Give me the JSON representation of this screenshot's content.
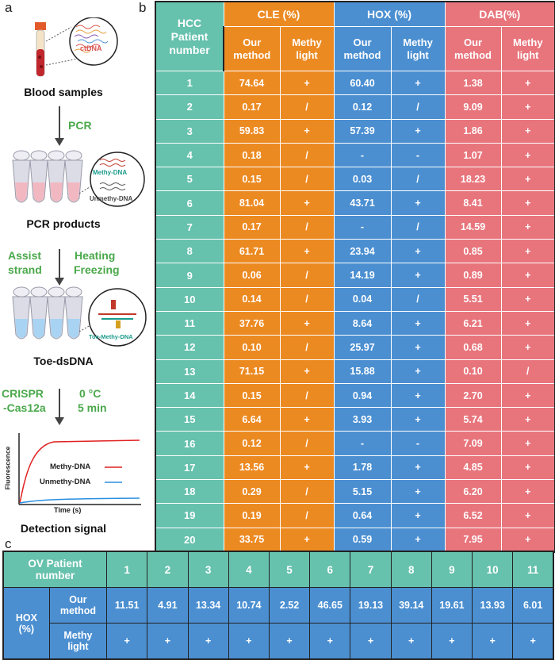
{
  "panel_labels": {
    "a": "a",
    "b": "b",
    "c": "c"
  },
  "flow": {
    "ctdna_label": "ctDNA",
    "blood_samples": "Blood samples",
    "pcr": "PCR",
    "methy_dna_tube": "Methy-DNA",
    "unmethy_dna_tube": "Unmethy-DNA",
    "pcr_products": "PCR products",
    "assist_strand_line1": "Assist",
    "assist_strand_line2": "strand",
    "heating_line1": "Heating",
    "heating_line2": "Freezing",
    "toe_methy_dna": "Toe-Methy-DNA",
    "toe_dsdna": "Toe-dsDNA",
    "crispr_line1": "CRISPR",
    "crispr_line2": "-Cas12a",
    "temp_line1": "0 °C",
    "temp_line2": "5 min",
    "legend_methy": "Methy-DNA",
    "legend_unmethy": "Unmethy-DNA",
    "y_axis": "Fluorescence",
    "x_axis": "Time (s)",
    "detection_signal": "Detection signal"
  },
  "table_b": {
    "header_patient_line1": "HCC",
    "header_patient_line2": "Patient",
    "header_patient_line3": "number",
    "groups": [
      "CLE (%)",
      "HOX (%)",
      "DAB(%)"
    ],
    "sub_our_line1": "Our",
    "sub_our_line2": "method",
    "sub_methy_line1": "Methy",
    "sub_methy_line2": "light",
    "rows": [
      [
        "1",
        "74.64",
        "+",
        "60.40",
        "+",
        "1.38",
        "+"
      ],
      [
        "2",
        "0.17",
        "/",
        "0.12",
        "/",
        "9.09",
        "+"
      ],
      [
        "3",
        "59.83",
        "+",
        "57.39",
        "+",
        "1.86",
        "+"
      ],
      [
        "4",
        "0.18",
        "/",
        "-",
        "-",
        "1.07",
        "+"
      ],
      [
        "5",
        "0.15",
        "/",
        "0.03",
        "/",
        "18.23",
        "+"
      ],
      [
        "6",
        "81.04",
        "+",
        "43.71",
        "+",
        "8.41",
        "+"
      ],
      [
        "7",
        "0.17",
        "/",
        "-",
        "/",
        "14.59",
        "+"
      ],
      [
        "8",
        "61.71",
        "+",
        "23.94",
        "+",
        "0.85",
        "+"
      ],
      [
        "9",
        "0.06",
        "/",
        "14.19",
        "+",
        "0.89",
        "+"
      ],
      [
        "10",
        "0.14",
        "/",
        "0.04",
        "/",
        "5.51",
        "+"
      ],
      [
        "11",
        "37.76",
        "+",
        "8.64",
        "+",
        "6.21",
        "+"
      ],
      [
        "12",
        "0.10",
        "/",
        "25.97",
        "+",
        "0.68",
        "+"
      ],
      [
        "13",
        "71.15",
        "+",
        "15.88",
        "+",
        "0.10",
        "/"
      ],
      [
        "14",
        "0.15",
        "/",
        "0.94",
        "+",
        "2.70",
        "+"
      ],
      [
        "15",
        "6.64",
        "+",
        "3.93",
        "+",
        "5.74",
        "+"
      ],
      [
        "16",
        "0.12",
        "/",
        "-",
        "-",
        "7.09",
        "+"
      ],
      [
        "17",
        "13.56",
        "+",
        "1.78",
        "+",
        "4.85",
        "+"
      ],
      [
        "18",
        "0.29",
        "/",
        "5.15",
        "+",
        "6.20",
        "+"
      ],
      [
        "19",
        "0.19",
        "/",
        "0.64",
        "+",
        "6.52",
        "+"
      ],
      [
        "20",
        "33.75",
        "+",
        "0.59",
        "+",
        "7.95",
        "+"
      ]
    ]
  },
  "table_c": {
    "header_line1": "OV Patient",
    "header_line2": "number",
    "patients": [
      "1",
      "2",
      "3",
      "4",
      "5",
      "6",
      "7",
      "8",
      "9",
      "10",
      "11"
    ],
    "hox_line1": "HOX",
    "hox_line2": "(%)",
    "our_line1": "Our",
    "our_line2": "method",
    "methy_line1": "Methy",
    "methy_line2": "light",
    "our_values": [
      "11.51",
      "4.91",
      "13.34",
      "10.74",
      "2.52",
      "46.65",
      "19.13",
      "39.14",
      "19.61",
      "13.93",
      "6.01"
    ],
    "methy_values": [
      "+",
      "+",
      "+",
      "+",
      "+",
      "+",
      "+",
      "+",
      "+",
      "+",
      "+"
    ]
  },
  "colors": {
    "teal": "#66c1ad",
    "orange": "#ec8a22",
    "blue": "#4b8fd1",
    "pink": "#e8757c",
    "green_text": "#4aa84a"
  }
}
